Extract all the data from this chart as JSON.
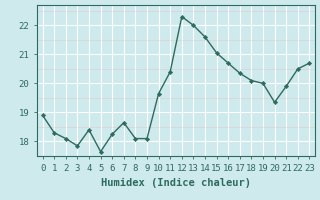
{
  "x": [
    0,
    1,
    2,
    3,
    4,
    5,
    6,
    7,
    8,
    9,
    10,
    11,
    12,
    13,
    14,
    15,
    16,
    17,
    18,
    19,
    20,
    21,
    22,
    23
  ],
  "y": [
    18.9,
    18.3,
    18.1,
    17.85,
    18.4,
    17.65,
    18.25,
    18.65,
    18.1,
    18.1,
    19.65,
    20.4,
    22.3,
    22.0,
    21.6,
    21.05,
    20.7,
    20.35,
    20.1,
    20.0,
    19.35,
    19.9,
    20.5,
    20.7
  ],
  "line_color": "#2e6b5e",
  "marker": "D",
  "markersize": 2.2,
  "linewidth": 1.0,
  "xlabel": "Humidex (Indice chaleur)",
  "ylim": [
    17.5,
    22.7
  ],
  "yticks": [
    18,
    19,
    20,
    21,
    22
  ],
  "xtick_labels": [
    "0",
    "1",
    "2",
    "3",
    "4",
    "5",
    "6",
    "7",
    "8",
    "9",
    "10",
    "11",
    "12",
    "13",
    "14",
    "15",
    "16",
    "17",
    "18",
    "19",
    "20",
    "21",
    "22",
    "23"
  ],
  "bg_color": "#ceeaec",
  "grid_color": "#ffffff",
  "grid_color_minor": "#e8f7f8",
  "xlabel_fontsize": 7.5,
  "tick_fontsize": 6.5
}
